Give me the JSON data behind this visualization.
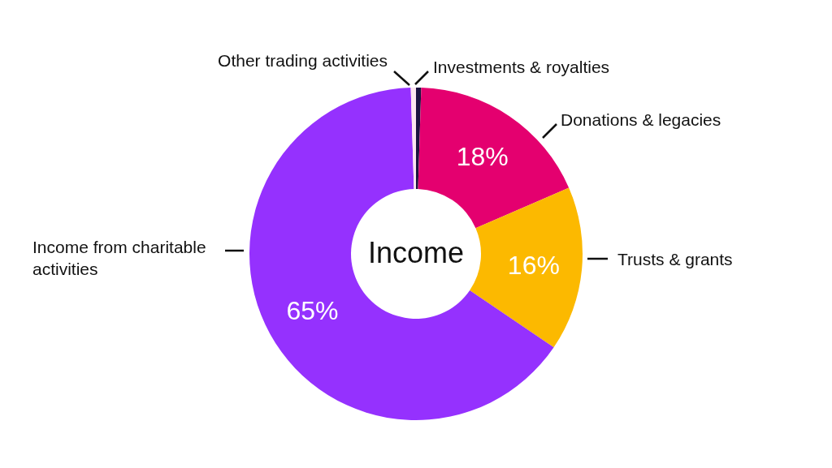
{
  "chart_data": {
    "type": "donut",
    "title": "Income",
    "categories": [
      "Investments & royalties",
      "Donations & legacies",
      "Trusts & grants",
      "Income from charitable activities",
      "Other trading activities"
    ],
    "values": [
      0.5,
      18,
      16,
      65,
      0.5
    ],
    "colors": [
      "#1c1340",
      "#e4006f",
      "#fcb900",
      "#9531fe",
      "#fde6f0"
    ],
    "value_labels": [
      null,
      "18%",
      "16%",
      "65%",
      null
    ]
  }
}
